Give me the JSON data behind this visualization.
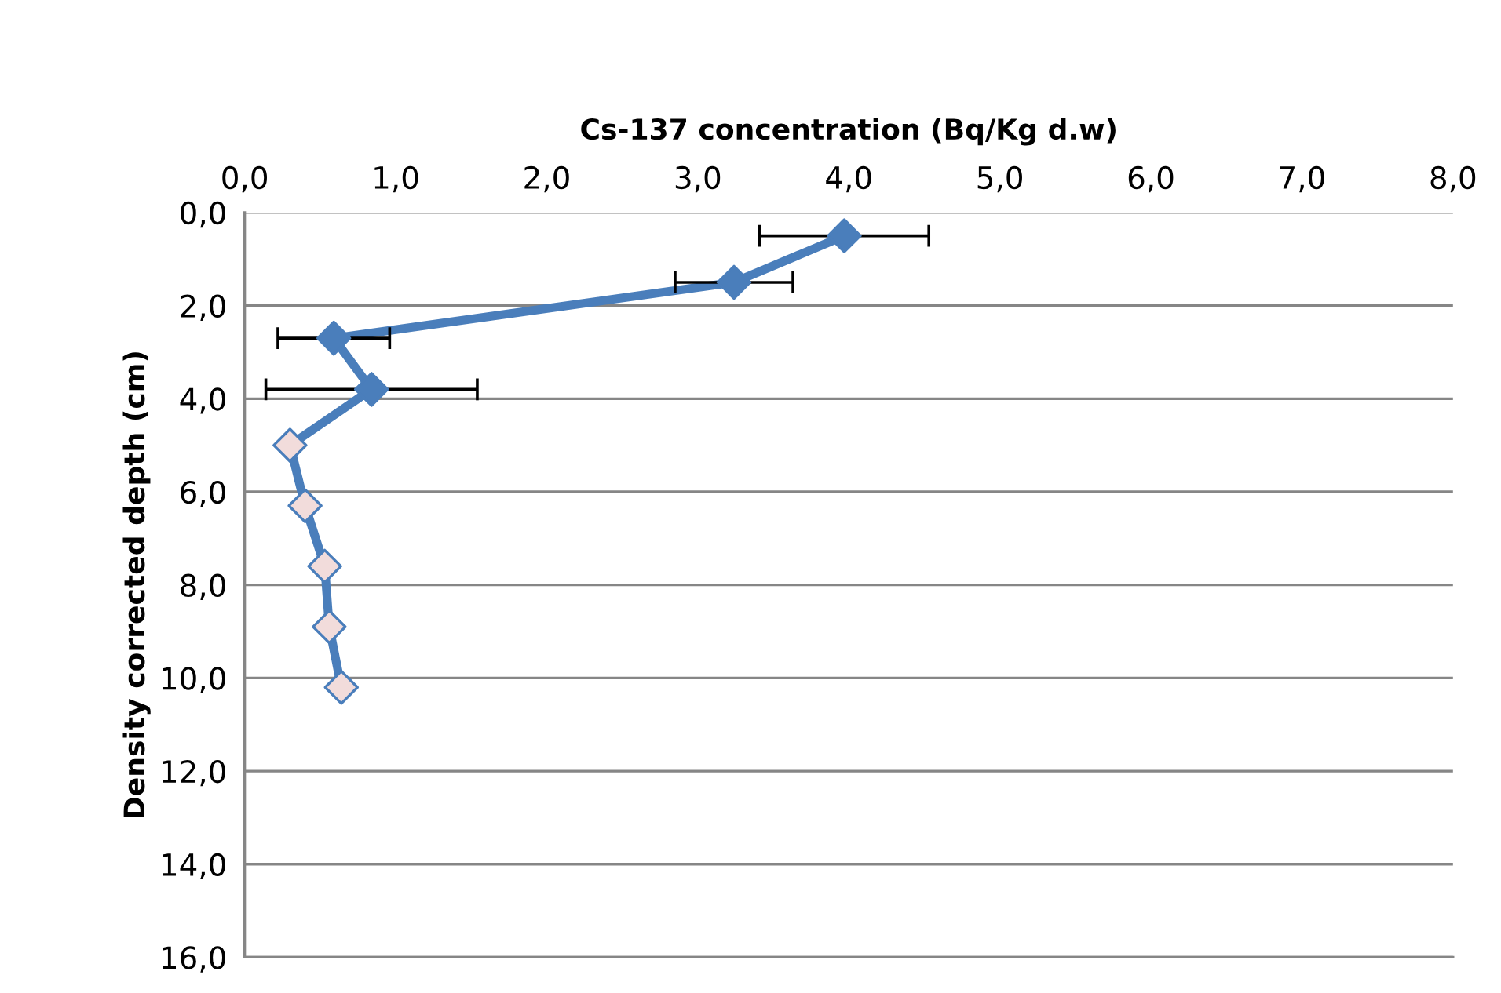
{
  "chart_data": {
    "type": "line",
    "xlabel": "Cs-137 concentration (Bq/Kg d.w)",
    "ylabel": "Density corrected depth (cm)",
    "series": [
      {
        "color": "#4a7ebb",
        "x": [
          3.97,
          3.24,
          0.59,
          0.84,
          0.3,
          0.4,
          0.53,
          0.56,
          0.64
        ],
        "values": [
          0.5,
          1.5,
          2.7,
          3.8,
          5.0,
          6.3,
          7.6,
          8.9,
          10.2
        ],
        "colors": [
          "#4a7ebb",
          "#4a7ebb",
          "#4a7ebb",
          "#4a7ebb",
          "#f2dcdb",
          "#f2dcdb",
          "#f2dcdb",
          "#f2dcdb",
          "#f2dcdb"
        ],
        "xerrors": [
          0.56,
          0.39,
          0.37,
          0.7,
          null,
          null,
          null,
          null,
          null
        ]
      }
    ],
    "marker": "diamond",
    "line_style": "solid",
    "grid": "y",
    "xlim": [
      0,
      8
    ],
    "xticks": [
      {
        "value": 0,
        "label": "0,0"
      },
      {
        "value": 1,
        "label": "1,0"
      },
      {
        "value": 2,
        "label": "2,0"
      },
      {
        "value": 3,
        "label": "3,0"
      },
      {
        "value": 4,
        "label": "4,0"
      },
      {
        "value": 5,
        "label": "5,0"
      },
      {
        "value": 6,
        "label": "6,0"
      },
      {
        "value": 7,
        "label": "7,0"
      },
      {
        "value": 8,
        "label": "8,0"
      }
    ],
    "ylim": [
      16,
      0
    ],
    "yticks": [
      {
        "value": 0,
        "label": "0,0"
      },
      {
        "value": 2,
        "label": "2,0"
      },
      {
        "value": 4,
        "label": "4,0"
      },
      {
        "value": 6,
        "label": "6,0"
      },
      {
        "value": 8,
        "label": "8,0"
      },
      {
        "value": 10,
        "label": "10,0"
      },
      {
        "value": 12,
        "label": "12,0"
      },
      {
        "value": 14,
        "label": "14,0"
      },
      {
        "value": 16,
        "label": "16,0"
      }
    ]
  }
}
